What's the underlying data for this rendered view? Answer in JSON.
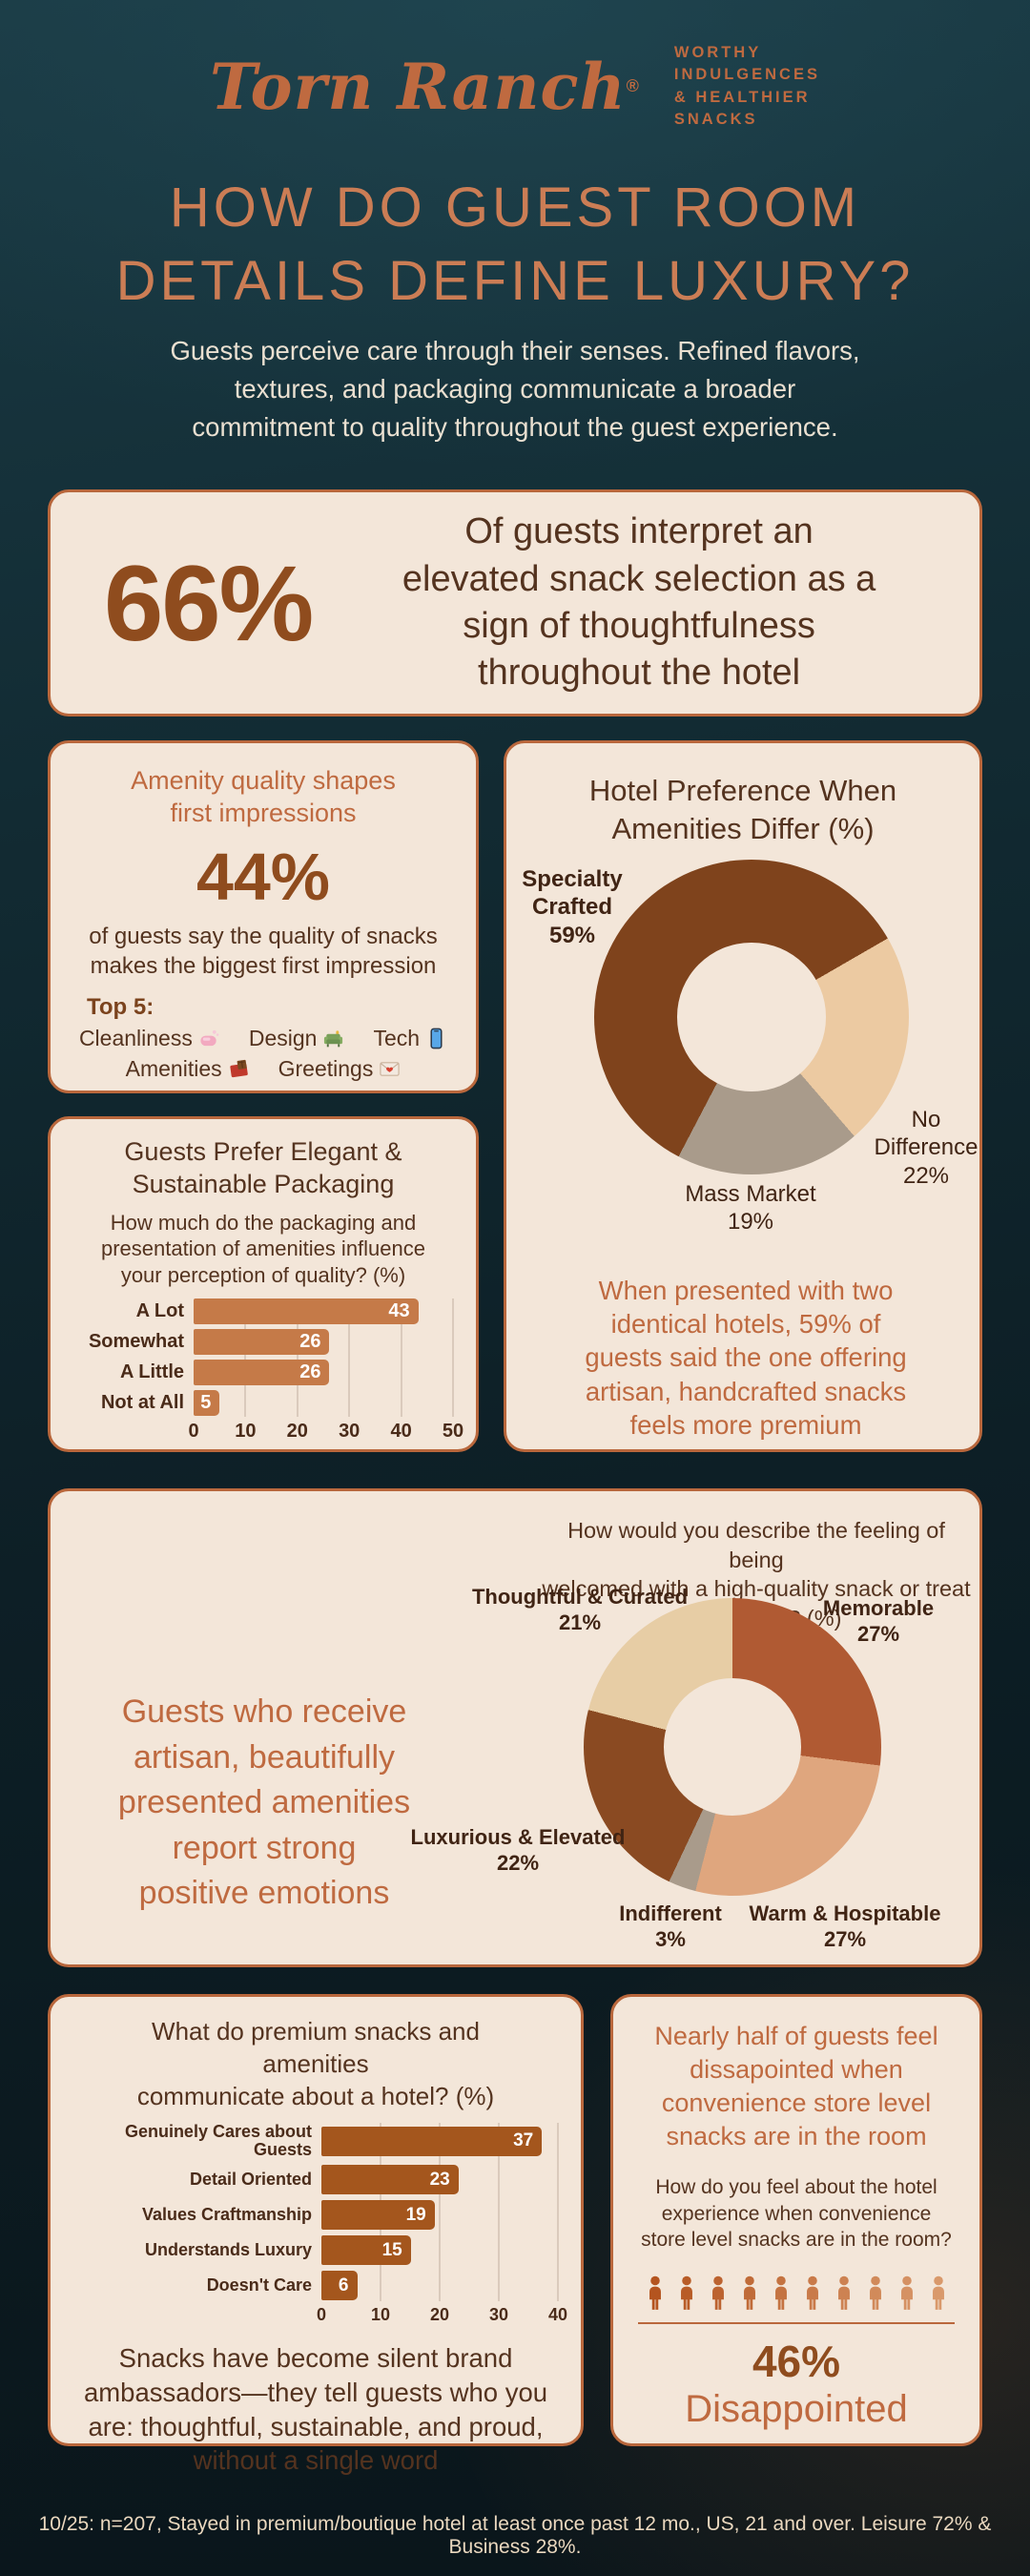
{
  "brand": {
    "logo_text": "Torn Ranch",
    "reg_mark": "®",
    "tagline_lines": [
      "WORTHY",
      "INDULGENCES",
      "& HEALTHIER",
      "SNACKS"
    ]
  },
  "header": {
    "title_lines": [
      "HOW DO GUEST ROOM",
      "DETAILS DEFINE LUXURY?"
    ],
    "subtitle_lines": [
      "Guests perceive care through their senses. Refined flavors,",
      "textures, and packaging communicate a broader",
      "commitment to quality throughout the guest experience."
    ]
  },
  "stat66": {
    "value": "66%",
    "text_lines": [
      "Of guests interpret an",
      "elevated snack selection as a",
      "sign of thoughtfulness",
      "throughout the hotel"
    ]
  },
  "amenity_box": {
    "title_lines": [
      "Amenity quality shapes",
      "first impressions"
    ],
    "value": "44%",
    "text_lines": [
      "of guests say the quality of snacks",
      "makes the biggest first impression"
    ],
    "top5_label": "Top 5:",
    "top5_items": [
      "Cleanliness",
      "Design",
      "Tech",
      "Amenities",
      "Greetings"
    ]
  },
  "preference_box": {
    "note_lines": [
      "When presented with two",
      "identical hotels, 59% of",
      "guests said the one offering",
      "artisan, handcrafted snacks",
      "feels more premium"
    ]
  },
  "emotions_box": {
    "statement_lines": [
      "Guests who receive",
      "artisan, beautifully",
      "presented amenities",
      "report strong",
      "positive emotions"
    ]
  },
  "communicate_box": {
    "note": "Snacks have become silent brand ambassadors—they tell guests who you are: thoughtful, sustainable, and proud, without a single word"
  },
  "disappointed_box": {
    "title_lines": [
      "Nearly half of guests feel",
      "dissapointed when",
      "convenience store level",
      "snacks are in the room"
    ],
    "question_lines": [
      "How do you feel about the hotel",
      "experience when convenience",
      "store level snacks are in the room?"
    ],
    "people_total": 10,
    "value": "46%",
    "label": "Disappointed"
  },
  "chart_data": [
    {
      "id": "hotel-preference",
      "type": "donut",
      "title_lines": [
        "Hotel Preference When",
        "Amenities Differ (%)"
      ],
      "slices": [
        {
          "label": "Specialty Crafted",
          "label_lines": "Specialty\nCrafted",
          "value": 59,
          "pct_label": "59%",
          "color": "#7f431c"
        },
        {
          "label": "No Difference",
          "label_lines": "No\nDifference",
          "value": 22,
          "pct_label": "22%",
          "color": "#eccaa2"
        },
        {
          "label": "Mass Market",
          "label_lines": "Mass Market",
          "value": 19,
          "pct_label": "19%",
          "color": "#a99b8b"
        }
      ]
    },
    {
      "id": "packaging-influence",
      "type": "bar",
      "title_lines": [
        "Guests Prefer Elegant &",
        "Sustainable Packaging"
      ],
      "question_lines": [
        "How much do the packaging and",
        "presentation of amenities influence",
        "your perception of quality? (%)"
      ],
      "categories": [
        "A Lot",
        "Somewhat",
        "A Little",
        "Not at All"
      ],
      "values": [
        43,
        26,
        26,
        5
      ],
      "xmax": 50,
      "ticks": [
        0,
        10,
        20,
        30,
        40,
        50
      ],
      "bar_color": "#c57a48"
    },
    {
      "id": "arrival-feelings",
      "type": "donut",
      "title_lines": [
        "How would you describe the feeling of being",
        "welcomed with a high-quality snack or treat",
        "upon arrival? (%)"
      ],
      "slices": [
        {
          "label": "Memorable",
          "label_lines": "Memorable",
          "value": 27,
          "pct_label": "27%",
          "color": "#b05a33"
        },
        {
          "label": "Warm & Hospitable",
          "label_lines": "Warm & Hospitable",
          "value": 27,
          "pct_label": "27%",
          "color": "#dfa67e"
        },
        {
          "label": "Indifferent",
          "label_lines": "Indifferent",
          "value": 3,
          "pct_label": "3%",
          "color": "#a99b8b"
        },
        {
          "label": "Luxurious & Elevated",
          "label_lines": "Luxurious & Elevated",
          "value": 22,
          "pct_label": "22%",
          "color": "#8a4a22"
        },
        {
          "label": "Thoughtful & Curated",
          "label_lines": "Thoughtful & Curated",
          "value": 21,
          "pct_label": "21%",
          "color": "#e7cda5"
        }
      ]
    },
    {
      "id": "hotel-communicates",
      "type": "bar",
      "title_lines": [
        "What do premium snacks and amenities",
        "communicate about a hotel? (%)"
      ],
      "categories": [
        "Genuinely Cares about Guests",
        "Detail Oriented",
        "Values Craftmanship",
        "Understands Luxury",
        "Doesn't Care"
      ],
      "values": [
        37,
        23,
        19,
        15,
        6
      ],
      "xmax": 40,
      "ticks": [
        0,
        10,
        20,
        30,
        40
      ],
      "bar_color": "#a4561d"
    }
  ],
  "footer": {
    "note": "10/25: n=207, Stayed in premium/boutique hotel at least once past 12 mo., US, 21 and over. Leisure 72% & Business 28%."
  },
  "colors": {
    "background_top": "#1a3a44",
    "background_bottom": "#0a151a",
    "box_bg": "#f3e6d9",
    "box_border": "#b9673c",
    "accent_copper": "#bf6a40",
    "header_copper": "#cb7d55",
    "dark_text": "#54331f",
    "deep_brown": "#8f4c1e",
    "cream_text": "#eae0d1",
    "person_start": "#b4541f",
    "person_end": "#d9996b"
  }
}
